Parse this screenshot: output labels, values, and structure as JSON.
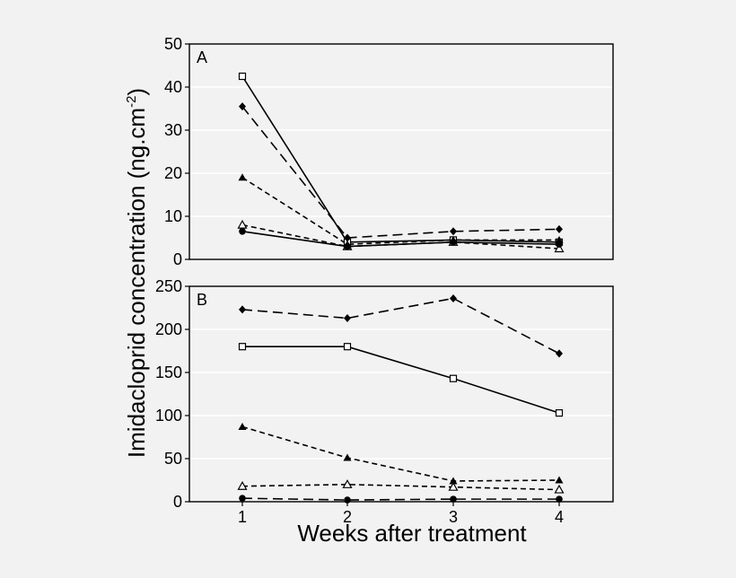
{
  "chart_data": [
    {
      "type": "line",
      "panel_label": "A",
      "x": [
        1,
        2,
        3,
        4
      ],
      "ylim": [
        0,
        50
      ],
      "yticks": [
        0,
        10,
        20,
        30,
        40,
        50
      ],
      "grid": "horizontal",
      "series": [
        {
          "marker": "open-square",
          "line": "solid",
          "values": [
            42.5,
            4.0,
            4.5,
            4.0
          ]
        },
        {
          "marker": "filled-diamond",
          "line": "long-dash",
          "values": [
            35.5,
            5.0,
            6.5,
            7.0
          ]
        },
        {
          "marker": "filled-triangle",
          "line": "short-dash",
          "values": [
            19.0,
            3.5,
            4.5,
            4.5
          ]
        },
        {
          "marker": "open-triangle",
          "line": "short-dash",
          "values": [
            8.0,
            3.0,
            4.0,
            2.5
          ]
        },
        {
          "marker": "filled-circle",
          "line": "solid",
          "values": [
            6.5,
            3.0,
            4.0,
            3.5
          ]
        }
      ]
    },
    {
      "type": "line",
      "panel_label": "B",
      "x": [
        1,
        2,
        3,
        4
      ],
      "ylim": [
        0,
        250
      ],
      "yticks": [
        0,
        50,
        100,
        150,
        200,
        250
      ],
      "grid": "horizontal",
      "series": [
        {
          "marker": "filled-diamond",
          "line": "long-dash",
          "values": [
            223,
            213,
            236,
            172
          ]
        },
        {
          "marker": "open-square",
          "line": "solid",
          "values": [
            180,
            180,
            143,
            103
          ]
        },
        {
          "marker": "filled-triangle",
          "line": "short-dash",
          "values": [
            87,
            51,
            24,
            25
          ]
        },
        {
          "marker": "open-triangle",
          "line": "short-dash",
          "values": [
            18,
            20,
            17,
            14
          ]
        },
        {
          "marker": "filled-circle",
          "line": "long-dash",
          "values": [
            4,
            2,
            3,
            3
          ]
        }
      ]
    }
  ],
  "axes": {
    "xticks": [
      "1",
      "2",
      "3",
      "4"
    ],
    "xlabel": "Weeks after treatment",
    "ylabel_main": "Imidacloprid concentration (ng.cm",
    "ylabel_sup": "-2",
    "ylabel_close": ")"
  },
  "colors": {
    "background": "#f2f2f2",
    "plot_bg": "#f2f2f2",
    "grid": "#ffffff",
    "ink": "#000000"
  }
}
